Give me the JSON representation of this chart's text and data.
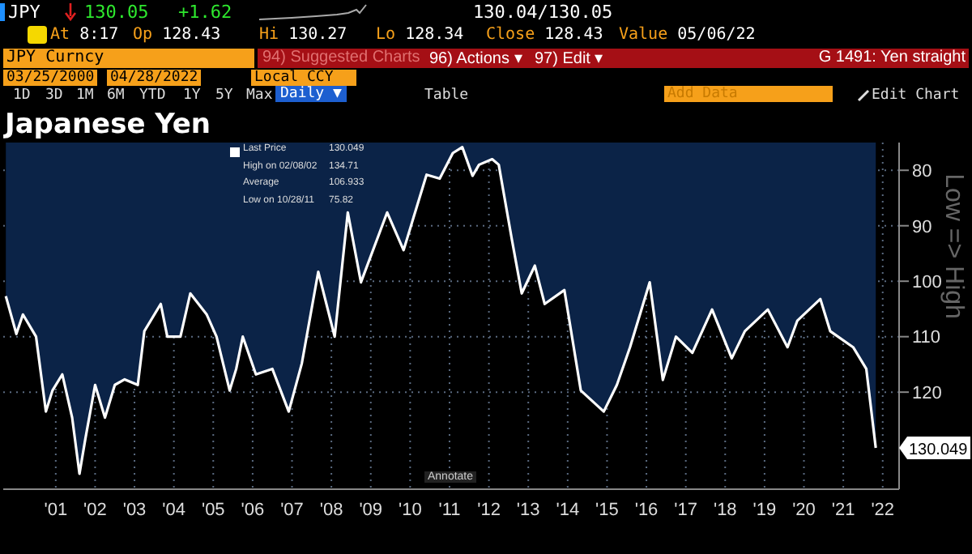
{
  "chart_data": {
    "type": "area",
    "title": "Japanese Yen",
    "ylabel": "Low => High",
    "x": [
      "2000-03-25",
      "2000-07",
      "2000-09",
      "2001-01",
      "2001-04",
      "2001-06",
      "2001-09",
      "2001-12",
      "2002-02-08",
      "2002-04",
      "2002-07",
      "2002-10",
      "2003-01",
      "2003-04",
      "2003-08",
      "2003-10",
      "2004-03",
      "2004-05",
      "2004-09",
      "2004-12",
      "2005-05",
      "2005-08",
      "2005-12",
      "2006-02",
      "2006-04",
      "2006-08",
      "2007-01",
      "2007-06",
      "2007-10",
      "2008-03",
      "2008-08",
      "2008-12",
      "2009-04",
      "2009-12",
      "2010-05",
      "2010-12",
      "2011-04",
      "2011-08",
      "2011-10-28",
      "2012-02",
      "2012-04",
      "2012-08",
      "2012-10",
      "2013-02",
      "2013-05",
      "2013-09",
      "2013-12",
      "2014-06",
      "2014-11",
      "2015-06",
      "2015-10",
      "2016-02",
      "2016-08",
      "2016-12",
      "2017-04",
      "2017-09",
      "2018-03",
      "2018-09",
      "2019-01",
      "2019-08",
      "2020-02",
      "2020-05",
      "2020-12",
      "2021-03",
      "2021-10",
      "2022-02",
      "2022-04-28"
    ],
    "series": [
      {
        "color": "#0b2347",
        "values": [
          102.7,
          109.5,
          106,
          110,
          123.5,
          119.7,
          116.8,
          124.6,
          134.71,
          128.5,
          118.7,
          124.6,
          118.7,
          117.7,
          118.7,
          109,
          104.1,
          110,
          110,
          102.2,
          106,
          110,
          119.7,
          115.8,
          110,
          116.8,
          115.8,
          123.5,
          114.8,
          98.3,
          110,
          87.6,
          100.2,
          87.6,
          94.4,
          80.8,
          81.5,
          76.9,
          75.82,
          81,
          79,
          78,
          79,
          92.5,
          102.2,
          97.2,
          104.1,
          101.6,
          119.7,
          123.5,
          118.7,
          111.9,
          100.2,
          117.8,
          110,
          112.9,
          105.1,
          113.9,
          109,
          105.1,
          111.9,
          107.1,
          103.2,
          109,
          111.9,
          115.8,
          130.049
        ]
      }
    ],
    "xlim": [
      "2000-03-01",
      "2022-12-01"
    ],
    "xticks": [
      {
        "value": "2001-07-01",
        "label": "'01"
      },
      {
        "value": "2002-07-01",
        "label": "'02"
      },
      {
        "value": "2003-07-01",
        "label": "'03"
      },
      {
        "value": "2004-07-01",
        "label": "'04"
      },
      {
        "value": "2005-07-01",
        "label": "'05"
      },
      {
        "value": "2006-07-01",
        "label": "'06"
      },
      {
        "value": "2007-07-01",
        "label": "'07"
      },
      {
        "value": "2008-07-01",
        "label": "'08"
      },
      {
        "value": "2009-07-01",
        "label": "'09"
      },
      {
        "value": "2010-07-01",
        "label": "'10"
      },
      {
        "value": "2011-07-01",
        "label": "'11"
      },
      {
        "value": "2012-07-01",
        "label": "'12"
      },
      {
        "value": "2013-07-01",
        "label": "'13"
      },
      {
        "value": "2014-07-01",
        "label": "'14"
      },
      {
        "value": "2015-07-01",
        "label": "'15"
      },
      {
        "value": "2016-07-01",
        "label": "'16"
      },
      {
        "value": "2017-07-01",
        "label": "'17"
      },
      {
        "value": "2018-07-01",
        "label": "'18"
      },
      {
        "value": "2019-07-01",
        "label": "'19"
      },
      {
        "value": "2020-07-01",
        "label": "'20"
      },
      {
        "value": "2021-07-01",
        "label": "'21"
      },
      {
        "value": "2022-07-01",
        "label": "'22"
      }
    ],
    "ylim": [
      137.5,
      75
    ],
    "yticks": [
      80,
      90,
      100,
      110,
      120
    ],
    "grid": true,
    "annotations": [
      "JPY",
      "130.05",
      "+1.62",
      "130.04/130.05",
      "At 8:17",
      "Op 128.43",
      "Hi 130.27",
      "Lo 128.34",
      "Close 128.43",
      "Value 05/06/22",
      "JPY Curncy",
      "94) Suggested Charts",
      "96) Actions ▾",
      "97) Edit ▾",
      "G 1491: Yen straight",
      "03/25/2000",
      "04/28/2022",
      "Local CCY",
      "1D",
      "3D",
      "1M",
      "6M",
      "YTD",
      "1Y",
      "5Y",
      "Max",
      "Daily ▼",
      "Table",
      "Add Data",
      "Edit Chart",
      "Last Price",
      "130.049",
      "High on 02/08/02",
      "134.71",
      "Average",
      "106.933",
      "Low on 10/28/11",
      "75.82",
      "Annotate",
      {
        "text": "130.049",
        "x": "2022-04-28",
        "y": 130.049
      }
    ]
  }
}
